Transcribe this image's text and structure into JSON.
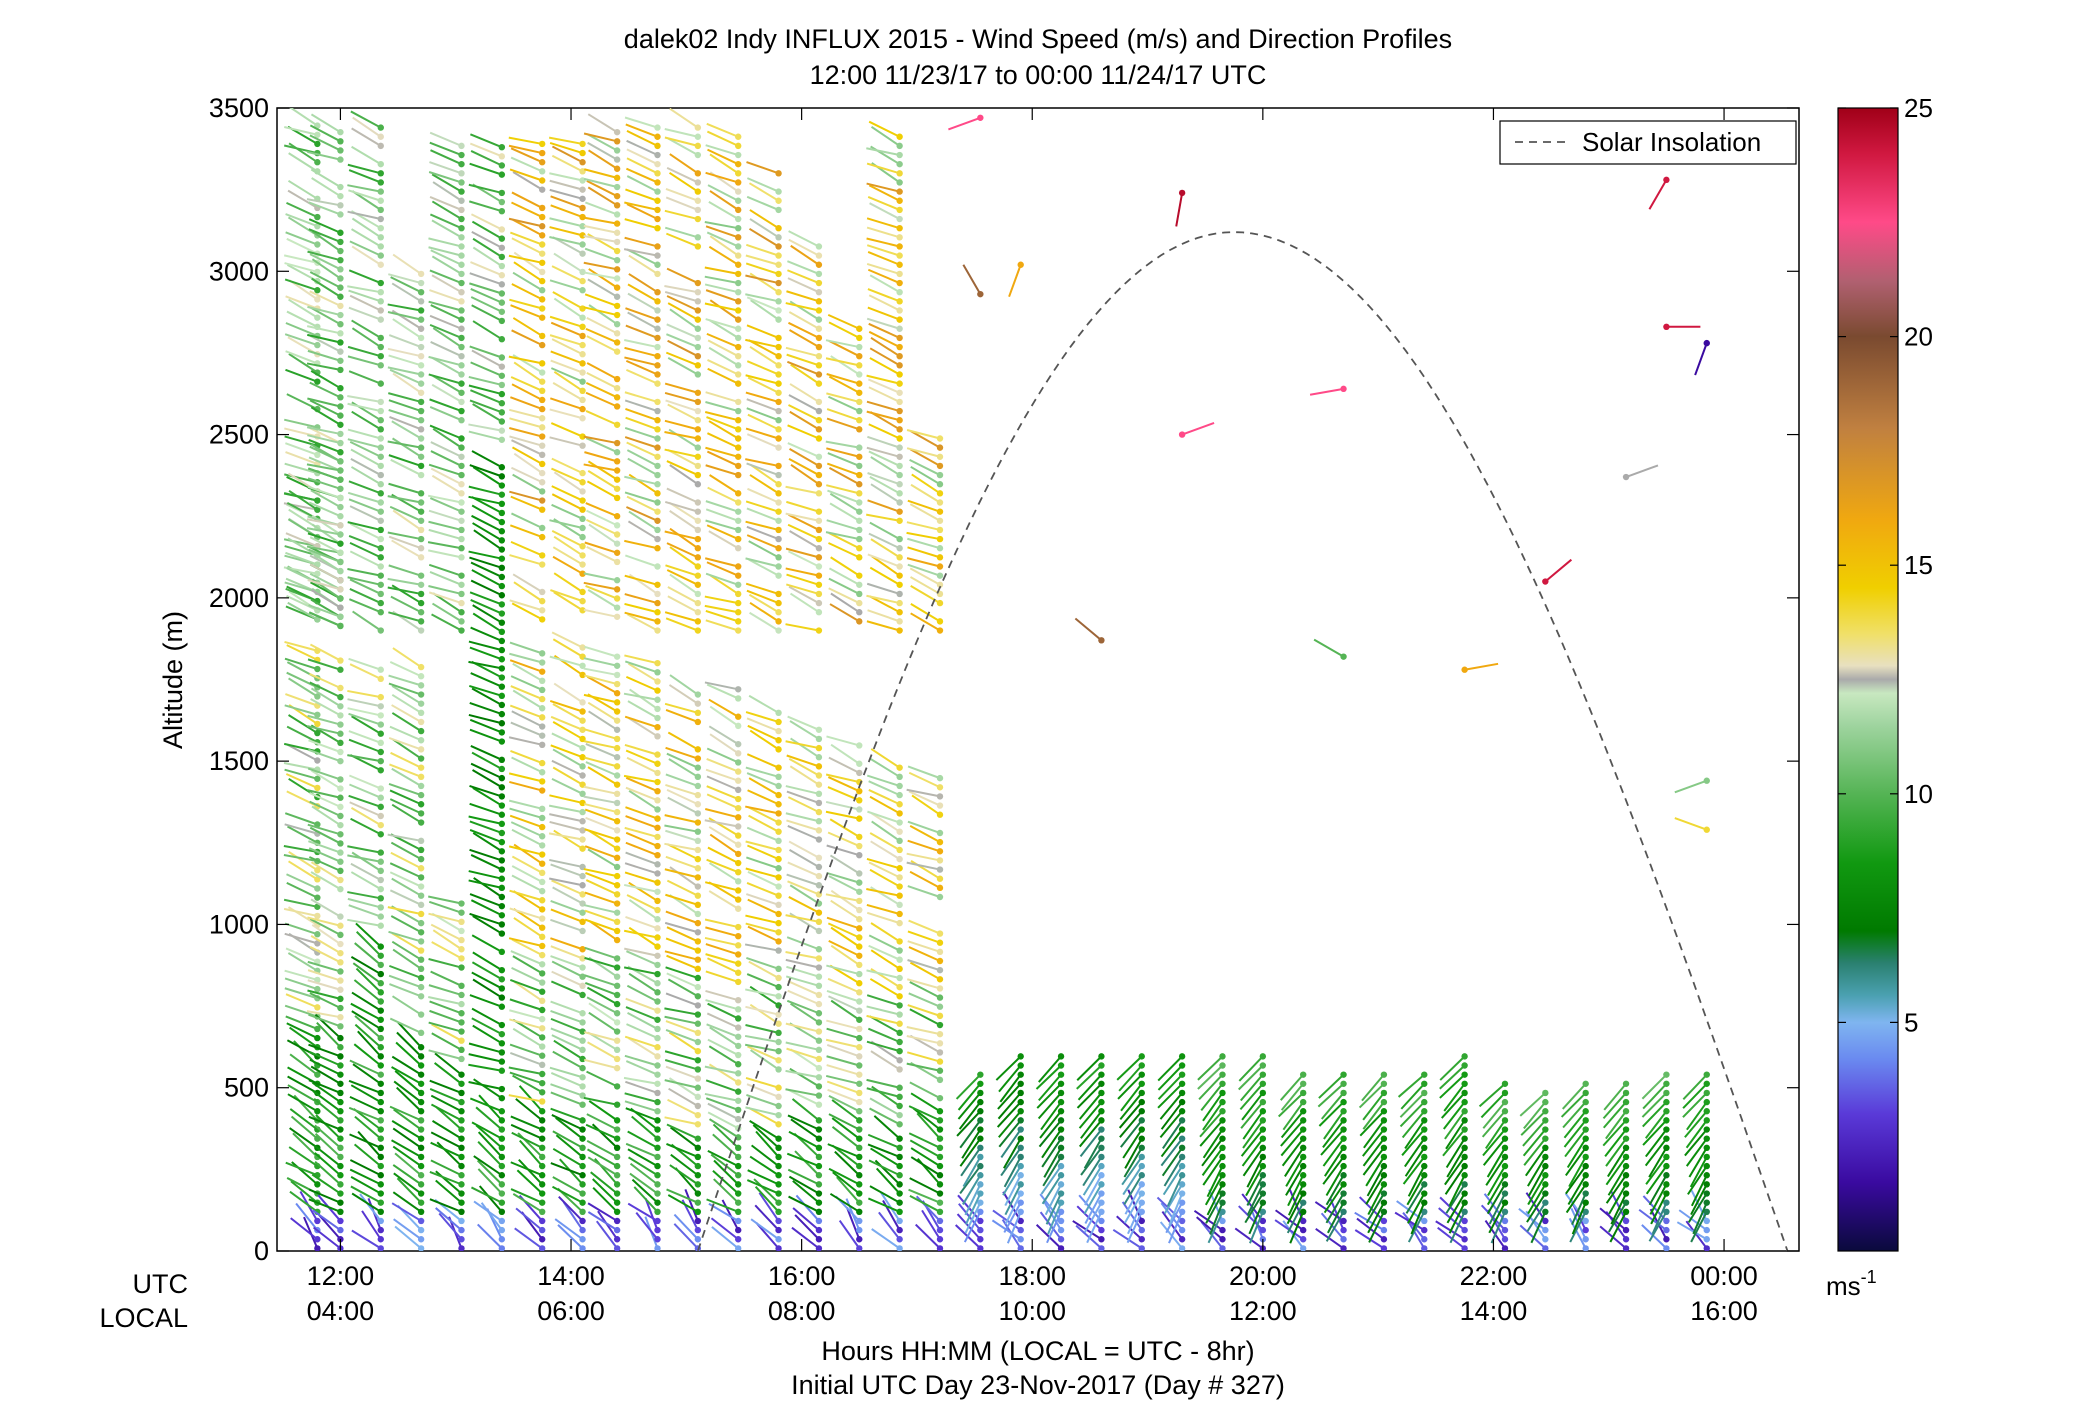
{
  "chart_data": {
    "type": "wind-barb-profile",
    "title": "dalek02 Indy INFLUX 2015 - Wind Speed (m/s) and Direction Profiles",
    "subtitle": "12:00 11/23/17 to 00:00 11/24/17  UTC",
    "ylabel": "Altitude (m)",
    "xlabel": "Hours HH:MM  (LOCAL = UTC - 8hr)",
    "xlabel2": "Initial UTC Day 23-Nov-2017 (Day # 327)",
    "utc_row_label": "UTC",
    "local_row_label": "LOCAL",
    "ylim": [
      0,
      3500
    ],
    "yticks": [
      0,
      500,
      1000,
      1500,
      2000,
      2500,
      3000,
      3500
    ],
    "ytick_labels": [
      "0",
      "500",
      "1000",
      "1500",
      "2000",
      "2500",
      "3000",
      "3500"
    ],
    "xlim_hours_utc": [
      11.45,
      24.65
    ],
    "xticks_utc_hours": [
      12,
      14,
      16,
      18,
      20,
      22,
      24
    ],
    "xtick_labels_utc": [
      "12:00",
      "14:00",
      "16:00",
      "18:00",
      "20:00",
      "22:00",
      "00:00"
    ],
    "xtick_labels_local": [
      "04:00",
      "06:00",
      "08:00",
      "10:00",
      "12:00",
      "14:00",
      "16:00"
    ],
    "legend": {
      "label": "Solar Insolation",
      "placement": "top-right",
      "style": "dashed gray"
    },
    "solar_curve": {
      "start_hour": 15.1,
      "peak_hour": 19.75,
      "end_hour": 24.55,
      "peak_altitude": 3120
    },
    "colorbar": {
      "min": 0,
      "max": 25,
      "ticks": [
        5,
        10,
        15,
        20,
        25
      ],
      "tick_labels": [
        "5",
        "10",
        "15",
        "20",
        "25"
      ],
      "unit_label": "ms",
      "unit_exponent": "-1",
      "stops": [
        {
          "v": 0,
          "color": "#0a0a3c"
        },
        {
          "v": 1.5,
          "color": "#3a0aa0"
        },
        {
          "v": 3,
          "color": "#5a3ad8"
        },
        {
          "v": 4.2,
          "color": "#6a8af0"
        },
        {
          "v": 5,
          "color": "#7fb5f0"
        },
        {
          "v": 5.6,
          "color": "#4aa0b0"
        },
        {
          "v": 6.3,
          "color": "#2a8070"
        },
        {
          "v": 7,
          "color": "#007a00"
        },
        {
          "v": 8.5,
          "color": "#119911"
        },
        {
          "v": 10,
          "color": "#55b455"
        },
        {
          "v": 11.5,
          "color": "#9fd49f"
        },
        {
          "v": 12.2,
          "color": "#c8e8c0"
        },
        {
          "v": 12.5,
          "color": "#aaaaaa"
        },
        {
          "v": 12.8,
          "color": "#e8e0c0"
        },
        {
          "v": 13.5,
          "color": "#f0e068"
        },
        {
          "v": 14.5,
          "color": "#f0cf00"
        },
        {
          "v": 16,
          "color": "#f0a810"
        },
        {
          "v": 18,
          "color": "#c08040"
        },
        {
          "v": 20,
          "color": "#7a4a30"
        },
        {
          "v": 21.2,
          "color": "#b06070"
        },
        {
          "v": 22.5,
          "color": "#ff4a88"
        },
        {
          "v": 24,
          "color": "#d01840"
        },
        {
          "v": 25,
          "color": "#a00018"
        }
      ]
    },
    "profiles_note_hours_utc": [
      11.8,
      12.0,
      12.35,
      12.7,
      13.05,
      13.4,
      13.75,
      14.1,
      14.4,
      14.75,
      15.1,
      15.45,
      15.8,
      16.15,
      16.5,
      16.85,
      17.2,
      17.55,
      17.9,
      18.25,
      18.6,
      18.95,
      19.3,
      19.65,
      20.0,
      20.35,
      20.7,
      21.05,
      21.4,
      21.75,
      22.1,
      22.45,
      22.8,
      23.15,
      23.5,
      23.85
    ],
    "profiles": [
      {
        "t": 11.8,
        "tops": [
          3450,
          2350
        ],
        "low_top": 690,
        "mid_top": 1850
      },
      {
        "t": 12.0,
        "tops": [
          3450,
          2500
        ],
        "low_top": 660,
        "mid_top": 1830
      },
      {
        "t": 12.35,
        "tops": [
          3450
        ],
        "low_top": 940,
        "mid_top": 1800
      },
      {
        "t": 12.7,
        "tops": [
          3000
        ],
        "low_top": 640,
        "mid_top": 1790
      },
      {
        "t": 13.05,
        "tops": [
          3400
        ],
        "low_top": 560,
        "mid_top": 1080
      },
      {
        "t": 13.4,
        "tops": [
          3400
        ],
        "low_top": 440,
        "mid_top": 2400
      },
      {
        "t": 13.75,
        "tops": [
          3400
        ],
        "low_top": 430,
        "mid_top": 1850
      },
      {
        "t": 14.1,
        "tops": [
          3400
        ],
        "low_top": 420,
        "mid_top": 1850
      },
      {
        "t": 14.4,
        "tops": [
          3450
        ],
        "low_top": 420,
        "mid_top": 1830
      },
      {
        "t": 14.75,
        "tops": [
          3450
        ],
        "low_top": 400,
        "mid_top": 1800
      },
      {
        "t": 15.1,
        "tops": [
          3450
        ],
        "low_top": 360,
        "mid_top": 1750
      },
      {
        "t": 15.45,
        "tops": [
          3420
        ],
        "low_top": 320,
        "mid_top": 1720
      },
      {
        "t": 15.8,
        "tops": [
          3300
        ],
        "low_top": 360,
        "mid_top": 1650
      },
      {
        "t": 16.15,
        "tops": [
          3100
        ],
        "low_top": 420,
        "mid_top": 1600
      },
      {
        "t": 16.5,
        "tops": [
          2850
        ],
        "low_top": 400,
        "mid_top": 1550
      },
      {
        "t": 16.85,
        "tops": [
          3450
        ],
        "low_top": 360,
        "mid_top": 1500
      },
      {
        "t": 17.2,
        "tops": [
          2500
        ],
        "low_top": 440,
        "mid_top": 1450
      },
      {
        "t": 17.55,
        "tops": [],
        "low_top": 560,
        "mid_top": 0
      },
      {
        "t": 17.9,
        "tops": [],
        "low_top": 620,
        "mid_top": 0
      },
      {
        "t": 18.25,
        "tops": [],
        "low_top": 620,
        "mid_top": 0
      },
      {
        "t": 18.6,
        "tops": [],
        "low_top": 620,
        "mid_top": 0
      },
      {
        "t": 18.95,
        "tops": [],
        "low_top": 620,
        "mid_top": 0
      },
      {
        "t": 19.3,
        "tops": [],
        "low_top": 620,
        "mid_top": 0
      },
      {
        "t": 19.65,
        "tops": [],
        "low_top": 620,
        "mid_top": 0
      },
      {
        "t": 20.0,
        "tops": [],
        "low_top": 620,
        "mid_top": 0
      },
      {
        "t": 20.35,
        "tops": [],
        "low_top": 560,
        "mid_top": 0
      },
      {
        "t": 20.7,
        "tops": [],
        "low_top": 560,
        "mid_top": 0
      },
      {
        "t": 21.05,
        "tops": [],
        "low_top": 560,
        "mid_top": 0
      },
      {
        "t": 21.4,
        "tops": [],
        "low_top": 560,
        "mid_top": 0
      },
      {
        "t": 21.75,
        "tops": [],
        "low_top": 620,
        "mid_top": 0
      },
      {
        "t": 22.1,
        "tops": [],
        "low_top": 520,
        "mid_top": 0
      },
      {
        "t": 22.45,
        "tops": [],
        "low_top": 500,
        "mid_top": 0
      },
      {
        "t": 22.8,
        "tops": [],
        "low_top": 520,
        "mid_top": 0
      },
      {
        "t": 23.15,
        "tops": [],
        "low_top": 520,
        "mid_top": 0
      },
      {
        "t": 23.5,
        "tops": [],
        "low_top": 540,
        "mid_top": 0
      },
      {
        "t": 23.85,
        "tops": [],
        "low_top": 560,
        "mid_top": 0
      }
    ],
    "isolated_barbs": [
      {
        "t": 17.55,
        "alt": 3470,
        "speed": 22.5,
        "dir": 250
      },
      {
        "t": 17.55,
        "alt": 2930,
        "speed": 19,
        "dir": 330
      },
      {
        "t": 17.9,
        "alt": 3020,
        "speed": 16,
        "dir": 200
      },
      {
        "t": 19.3,
        "alt": 3240,
        "speed": 24.5,
        "dir": 190
      },
      {
        "t": 20.7,
        "alt": 2640,
        "speed": 22.5,
        "dir": 260
      },
      {
        "t": 19.3,
        "alt": 2500,
        "speed": 22.5,
        "dir": 70
      },
      {
        "t": 18.6,
        "alt": 1870,
        "speed": 19,
        "dir": 310
      },
      {
        "t": 20.7,
        "alt": 1820,
        "speed": 10,
        "dir": 300
      },
      {
        "t": 21.75,
        "alt": 1780,
        "speed": 16,
        "dir": 80
      },
      {
        "t": 22.45,
        "alt": 2050,
        "speed": 24,
        "dir": 50
      },
      {
        "t": 23.15,
        "alt": 2370,
        "speed": 12.5,
        "dir": 70
      },
      {
        "t": 23.5,
        "alt": 3280,
        "speed": 24,
        "dir": 210
      },
      {
        "t": 23.5,
        "alt": 2830,
        "speed": 24,
        "dir": 90
      },
      {
        "t": 23.85,
        "alt": 2780,
        "speed": 1.5,
        "dir": 200
      },
      {
        "t": 23.85,
        "alt": 1440,
        "speed": 11,
        "dir": 250
      },
      {
        "t": 23.85,
        "alt": 1290,
        "speed": 14,
        "dir": 290
      }
    ]
  }
}
